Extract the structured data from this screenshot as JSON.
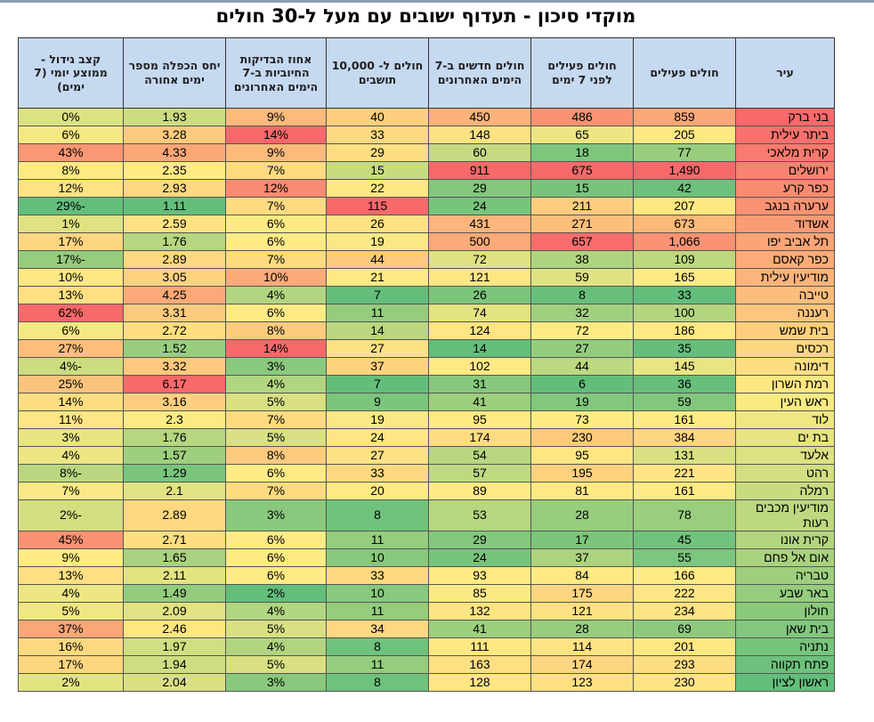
{
  "title": "מוקדי סיכון - תעדוף ישובים עם מעל ל-30 חולים",
  "table": {
    "headers": [
      "עיר",
      "חולים פעילים",
      "חולים פעילים לפני 7 ימים",
      "חולים חדשים ב-7 הימים האחרונים",
      "חולים ל- 10,000 תושבים",
      "אחוז הבדיקות החיוביות ב-7 הימים האחרונים",
      "יחס הכפלה מספר ימים אחורה",
      "קצב גידול - ממוצע יומי (7 ימים)"
    ],
    "rows": [
      [
        "בני ברק",
        "859",
        "486",
        "450",
        "40",
        "9%",
        "1.93",
        "0%"
      ],
      [
        "ביתר עילית",
        "205",
        "65",
        "148",
        "33",
        "14%",
        "3.28",
        "6%"
      ],
      [
        "קרית מלאכי",
        "77",
        "18",
        "60",
        "29",
        "9%",
        "4.33",
        "43%"
      ],
      [
        "ירושלים",
        "1,490",
        "675",
        "911",
        "15",
        "7%",
        "2.35",
        "8%"
      ],
      [
        "כפר קרע",
        "42",
        "15",
        "29",
        "22",
        "12%",
        "2.93",
        "12%"
      ],
      [
        "ערערה בנגב",
        "207",
        "211",
        "24",
        "115",
        "7%",
        "1.11",
        "-29%"
      ],
      [
        "אשדוד",
        "673",
        "271",
        "431",
        "26",
        "6%",
        "2.59",
        "1%"
      ],
      [
        "תל אביב יפו",
        "1,066",
        "657",
        "500",
        "19",
        "6%",
        "1.76",
        "17%"
      ],
      [
        "כפר קאסם",
        "109",
        "38",
        "72",
        "44",
        "7%",
        "2.89",
        "-17%"
      ],
      [
        "מודיעין עילית",
        "165",
        "59",
        "121",
        "21",
        "10%",
        "3.05",
        "10%"
      ],
      [
        "טייבה",
        "33",
        "8",
        "26",
        "7",
        "4%",
        "4.25",
        "13%"
      ],
      [
        "רעננה",
        "100",
        "32",
        "74",
        "11",
        "6%",
        "3.31",
        "62%"
      ],
      [
        "בית שמש",
        "186",
        "72",
        "124",
        "14",
        "8%",
        "2.72",
        "6%"
      ],
      [
        "רכסים",
        "35",
        "27",
        "14",
        "27",
        "14%",
        "1.52",
        "27%"
      ],
      [
        "דימונה",
        "145",
        "44",
        "102",
        "37",
        "3%",
        "3.32",
        "-4%"
      ],
      [
        "רמת השרון",
        "36",
        "6",
        "31",
        "7",
        "4%",
        "6.17",
        "25%"
      ],
      [
        "ראש העין",
        "59",
        "19",
        "41",
        "9",
        "5%",
        "3.16",
        "14%"
      ],
      [
        "לוד",
        "161",
        "73",
        "95",
        "19",
        "7%",
        "2.3",
        "11%"
      ],
      [
        "בת ים",
        "384",
        "230",
        "174",
        "24",
        "5%",
        "1.76",
        "3%"
      ],
      [
        "אלעד",
        "131",
        "95",
        "54",
        "27",
        "8%",
        "1.57",
        "4%"
      ],
      [
        "רהט",
        "221",
        "195",
        "57",
        "33",
        "6%",
        "1.29",
        "-8%"
      ],
      [
        "רמלה",
        "161",
        "81",
        "89",
        "20",
        "7%",
        "2.1",
        "7%"
      ],
      [
        "מודיעין מכבים רעות",
        "78",
        "28",
        "53",
        "8",
        "3%",
        "2.89",
        "-2%"
      ],
      [
        "קרית אונו",
        "45",
        "17",
        "29",
        "11",
        "6%",
        "2.71",
        "45%"
      ],
      [
        "אום אל פחם",
        "55",
        "37",
        "24",
        "10",
        "6%",
        "1.65",
        "9%"
      ],
      [
        "טבריה",
        "166",
        "84",
        "93",
        "33",
        "6%",
        "2.11",
        "13%"
      ],
      [
        "באר שבע",
        "222",
        "175",
        "85",
        "10",
        "2%",
        "1.49",
        "4%"
      ],
      [
        "חולון",
        "234",
        "121",
        "132",
        "11",
        "4%",
        "2.09",
        "5%"
      ],
      [
        "בית שאן",
        "69",
        "28",
        "41",
        "34",
        "5%",
        "2.46",
        "37%"
      ],
      [
        "נתניה",
        "201",
        "114",
        "111",
        "8",
        "4%",
        "1.97",
        "16%"
      ],
      [
        "פתח תקווה",
        "293",
        "174",
        "163",
        "11",
        "5%",
        "1.94",
        "17%"
      ],
      [
        "ראשון לציון",
        "230",
        "123",
        "128",
        "8",
        "3%",
        "2.04",
        "2%"
      ]
    ]
  }
}
